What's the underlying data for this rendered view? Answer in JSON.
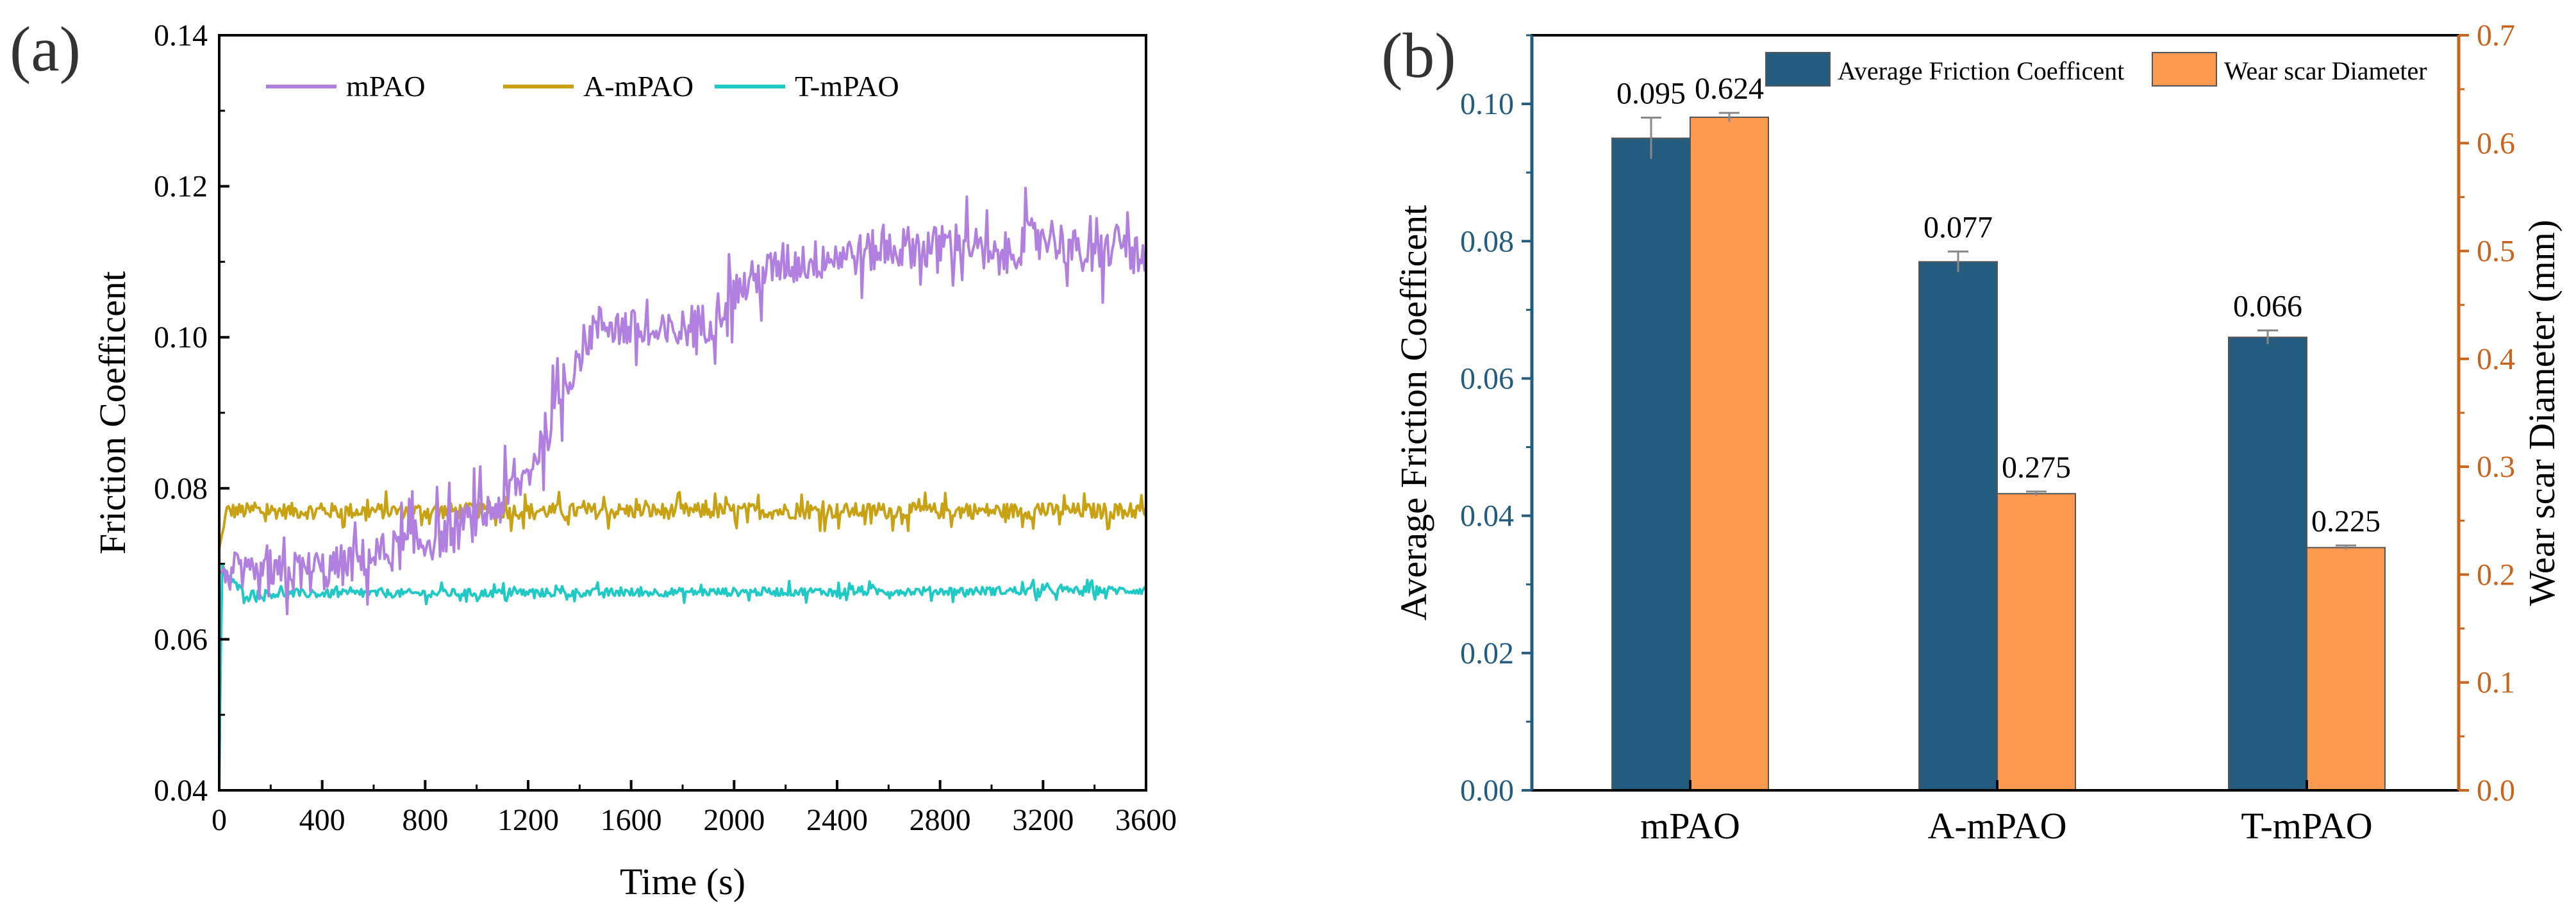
{
  "panels": {
    "a_label": "(a)",
    "b_label": "(b)"
  },
  "chart_data": [
    {
      "type": "line",
      "xlabel": "Time (s)",
      "ylabel": "Friction Coefficent",
      "xlim": [
        0,
        3600
      ],
      "ylim": [
        0.04,
        0.14
      ],
      "x_ticks": [
        0,
        400,
        800,
        1200,
        1600,
        2000,
        2400,
        2800,
        3200,
        3600
      ],
      "x_tick_labels": [
        "0",
        "400",
        "800",
        "1200",
        "1600",
        "2000",
        "2400",
        "2800",
        "3200",
        "3600"
      ],
      "y_ticks": [
        0.04,
        0.06,
        0.08,
        0.1,
        0.12,
        0.14
      ],
      "y_tick_labels": [
        "0.04",
        "0.06",
        "0.08",
        "0.10",
        "0.12",
        "0.14"
      ],
      "legend_position": "top-left",
      "series": [
        {
          "name": "mPAO",
          "color": "#b07fe0",
          "x": [
            0,
            50,
            100,
            200,
            300,
            400,
            500,
            600,
            700,
            800,
            900,
            1000,
            1100,
            1200,
            1250,
            1300,
            1350,
            1400,
            1450,
            1500,
            1600,
            1700,
            1800,
            1900,
            2000,
            2100,
            2200,
            2300,
            2400,
            2500,
            2600,
            2700,
            2800,
            2900,
            3000,
            3100,
            3200,
            3300,
            3400,
            3500,
            3600
          ],
          "y": [
            0.069,
            0.069,
            0.068,
            0.068,
            0.069,
            0.069,
            0.07,
            0.071,
            0.072,
            0.073,
            0.074,
            0.076,
            0.078,
            0.082,
            0.086,
            0.09,
            0.094,
            0.098,
            0.101,
            0.102,
            0.101,
            0.1,
            0.101,
            0.102,
            0.106,
            0.108,
            0.11,
            0.11,
            0.111,
            0.111,
            0.112,
            0.112,
            0.112,
            0.113,
            0.11,
            0.112,
            0.114,
            0.112,
            0.11,
            0.113,
            0.109
          ],
          "noise": 0.004
        },
        {
          "name": "A-mPAO",
          "color": "#c9a213",
          "x": [
            0,
            30,
            3600
          ],
          "y": [
            0.072,
            0.077,
            0.077
          ],
          "noise": 0.0015
        },
        {
          "name": "T-mPAO",
          "color": "#1ec9c6",
          "x": [
            0,
            10,
            40,
            100,
            3600
          ],
          "y": [
            0.04,
            0.07,
            0.068,
            0.066,
            0.0665
          ],
          "noise": 0.0008
        }
      ]
    },
    {
      "type": "bar",
      "categories": [
        "mPAO",
        "A-mPAO",
        "T-mPAO"
      ],
      "ylabel": "Average Friction Coefficent",
      "y2label": "Wear scar Diameter (mm)",
      "ylim": [
        0,
        0.11
      ],
      "y2lim": [
        0,
        0.7
      ],
      "y_ticks": [
        0.0,
        0.02,
        0.04,
        0.06,
        0.08,
        0.1
      ],
      "y_tick_labels": [
        "0.00",
        "0.02",
        "0.04",
        "0.06",
        "0.08",
        "0.10"
      ],
      "y2_ticks": [
        0.0,
        0.1,
        0.2,
        0.3,
        0.4,
        0.5,
        0.6,
        0.7
      ],
      "y2_tick_labels": [
        "0.0",
        "0.1",
        "0.2",
        "0.3",
        "0.4",
        "0.5",
        "0.6",
        "0.7"
      ],
      "legend_position": "top",
      "series": [
        {
          "name": "Average Friction Coefficent",
          "axis": "left",
          "color": "#245c80",
          "values": [
            0.095,
            0.077,
            0.066
          ],
          "errors": [
            0.003,
            0.0015,
            0.001
          ],
          "labels": [
            "0.095",
            "0.077",
            "0.066"
          ]
        },
        {
          "name": "Wear scar Diameter",
          "axis": "right",
          "color": "#fd9950",
          "values": [
            0.624,
            0.275,
            0.225
          ],
          "errors": [
            0.004,
            0.002,
            0.002
          ],
          "labels": [
            "0.624",
            "0.275",
            "0.225"
          ]
        }
      ],
      "left_axis_color": "#245c80",
      "right_axis_color": "#c8641e"
    }
  ]
}
